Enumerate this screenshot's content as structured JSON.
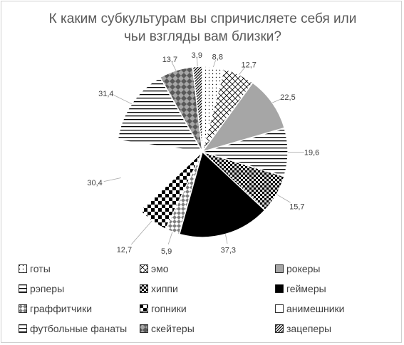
{
  "chart_data": {
    "type": "pie",
    "title": "К каким субкультурам вы спричисляете себя или чьи взгляды вам близки?",
    "legend_position": "bottom",
    "slices": [
      {
        "name": "готы",
        "value": 8.8,
        "label": "8,8",
        "pattern": "dots",
        "color": "#000000"
      },
      {
        "name": "эмо",
        "value": 12.7,
        "label": "12,7",
        "pattern": "trellis",
        "color": "#000000"
      },
      {
        "name": "рокеры",
        "value": 22.5,
        "label": "22,5",
        "pattern": "solid",
        "color": "#a6a6a6"
      },
      {
        "name": "рэперы",
        "value": 19.6,
        "label": "19,6",
        "pattern": "hlines",
        "color": "#000000"
      },
      {
        "name": "хиппи",
        "value": 15.7,
        "label": "15,7",
        "pattern": "checker",
        "color": "#000000"
      },
      {
        "name": "геймеры",
        "value": 37.3,
        "label": "37,3",
        "pattern": "solid",
        "color": "#000000"
      },
      {
        "name": "граффитчики",
        "value": 5.9,
        "label": "5,9",
        "pattern": "diamond",
        "color": "#000000"
      },
      {
        "name": "гопники",
        "value": 12.7,
        "label": "12,7",
        "pattern": "bigchecker",
        "color": "#000000"
      },
      {
        "name": "анимешники",
        "value": 30.4,
        "label": "30,4",
        "pattern": "solid",
        "color": "#ffffff"
      },
      {
        "name": "футбольные фанаты",
        "value": 31.4,
        "label": "31,4",
        "pattern": "hlines",
        "color": "#000000"
      },
      {
        "name": "скейтеры",
        "value": 13.7,
        "label": "13,7",
        "pattern": "diamondgray",
        "color": "#808080"
      },
      {
        "name": "зацеперы",
        "value": 3.9,
        "label": "3,9",
        "pattern": "diagonal",
        "color": "#000000"
      }
    ]
  }
}
